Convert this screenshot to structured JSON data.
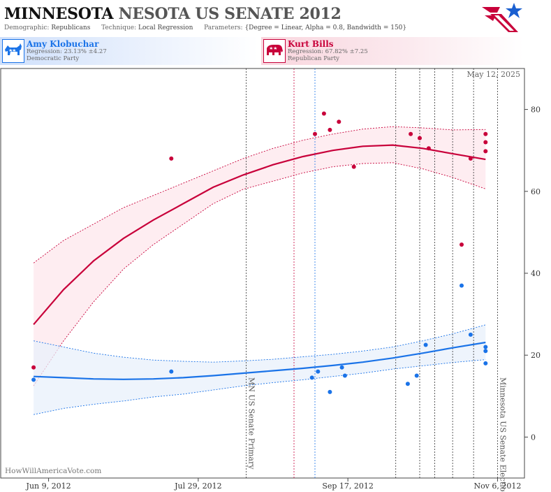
{
  "header": {
    "title_state": "MINNESOTA",
    "title_rest": "NESOTA US SENATE 2012",
    "demographic_label": "Demographic:",
    "demographic_value": "Republicans",
    "technique_label": "Technique:",
    "technique_value": "Local Regression",
    "parameters_label": "Parameters:",
    "parameters_value": "{Degree = Linear, Alpha = 0.8, Bandwidth = 150}"
  },
  "candidates": {
    "dem": {
      "name": "Amy Klobuchar",
      "regression": "Regression: 23.13% ±4.27",
      "party": "Democratic Party",
      "color": "#1a73e8",
      "icon": "donkey-icon"
    },
    "rep": {
      "name": "Kurt Bills",
      "regression": "Regression: 67.82% ±7.25",
      "party": "Republican Party",
      "color": "#c8003a",
      "icon": "elephant-icon"
    }
  },
  "watermark": "HowWillAmericaVote.com",
  "chart_data": {
    "type": "scatter",
    "date_stamp": "May 12, 2025",
    "x_tick_labels": [
      "Jun 9, 2012",
      "Jul 29, 2012",
      "Sep 17, 2012",
      "Nov 6, 2012"
    ],
    "x_ticks_days": [
      0,
      50,
      100,
      150
    ],
    "x_range": [
      "May 24, 2012",
      "Nov 16, 2012"
    ],
    "x_range_days": [
      -16,
      159
    ],
    "ylim": [
      -10,
      90
    ],
    "y_ticks": [
      0,
      20,
      40,
      60,
      80
    ],
    "grid": false,
    "event_lines": [
      {
        "day": 66,
        "label": "MN US Senate Primary"
      },
      {
        "day": 150,
        "label": "Minnesota US Senate Election"
      }
    ],
    "reference_lines": [
      {
        "day": 82,
        "color": "#c8003a"
      },
      {
        "day": 89,
        "color": "#1a73e8"
      },
      {
        "day": 116,
        "color": "#333333"
      },
      {
        "day": 124,
        "color": "#333333"
      },
      {
        "day": 129,
        "color": "#333333"
      },
      {
        "day": 135,
        "color": "#333333"
      },
      {
        "day": 142,
        "color": "#333333"
      }
    ],
    "series": [
      {
        "name": "Kurt Bills",
        "color": "#c8003a",
        "points": [
          [
            -5,
            17
          ],
          [
            41,
            68
          ],
          [
            89,
            74
          ],
          [
            92,
            79
          ],
          [
            94,
            75
          ],
          [
            97,
            77
          ],
          [
            102,
            66
          ],
          [
            121,
            74
          ],
          [
            124,
            73
          ],
          [
            127,
            70.5
          ],
          [
            138,
            47
          ],
          [
            141,
            68
          ],
          [
            146,
            74
          ],
          [
            146,
            72
          ],
          [
            146,
            69.8
          ]
        ],
        "fit": [
          [
            -5,
            27.5
          ],
          [
            5,
            36
          ],
          [
            15,
            43
          ],
          [
            25,
            48.5
          ],
          [
            35,
            53
          ],
          [
            45,
            57
          ],
          [
            55,
            61
          ],
          [
            65,
            64
          ],
          [
            75,
            66.5
          ],
          [
            85,
            68.5
          ],
          [
            95,
            70
          ],
          [
            105,
            71
          ],
          [
            115,
            71.3
          ],
          [
            125,
            70.5
          ],
          [
            135,
            69.2
          ],
          [
            146,
            67.8
          ]
        ],
        "band_upper": [
          [
            -5,
            42.5
          ],
          [
            5,
            48
          ],
          [
            15,
            52
          ],
          [
            25,
            56
          ],
          [
            35,
            59
          ],
          [
            45,
            62
          ],
          [
            55,
            65
          ],
          [
            65,
            68
          ],
          [
            75,
            70.5
          ],
          [
            85,
            72.5
          ],
          [
            95,
            74
          ],
          [
            105,
            75.2
          ],
          [
            115,
            75.8
          ],
          [
            125,
            75.5
          ],
          [
            135,
            75
          ],
          [
            146,
            75.1
          ]
        ],
        "band_lower": [
          [
            -5,
            12.5
          ],
          [
            5,
            23.5
          ],
          [
            15,
            33
          ],
          [
            25,
            41
          ],
          [
            35,
            47
          ],
          [
            45,
            52
          ],
          [
            55,
            57
          ],
          [
            65,
            60.5
          ],
          [
            75,
            62.5
          ],
          [
            85,
            64.5
          ],
          [
            95,
            66
          ],
          [
            105,
            66.8
          ],
          [
            115,
            67
          ],
          [
            125,
            65.5
          ],
          [
            135,
            63.4
          ],
          [
            146,
            60.6
          ]
        ]
      },
      {
        "name": "Amy Klobuchar",
        "color": "#1a73e8",
        "points": [
          [
            -5,
            14
          ],
          [
            41,
            16
          ],
          [
            88,
            14.5
          ],
          [
            90,
            16
          ],
          [
            94,
            11
          ],
          [
            98,
            17
          ],
          [
            99,
            15
          ],
          [
            120,
            13
          ],
          [
            123,
            15
          ],
          [
            126,
            22.5
          ],
          [
            138,
            37
          ],
          [
            141,
            25
          ],
          [
            146,
            22
          ],
          [
            146,
            21
          ],
          [
            146,
            18
          ]
        ],
        "fit": [
          [
            -5,
            14.8
          ],
          [
            5,
            14.5
          ],
          [
            15,
            14.2
          ],
          [
            25,
            14.1
          ],
          [
            35,
            14.2
          ],
          [
            45,
            14.5
          ],
          [
            55,
            15
          ],
          [
            65,
            15.6
          ],
          [
            75,
            16.2
          ],
          [
            85,
            16.8
          ],
          [
            95,
            17.5
          ],
          [
            105,
            18.3
          ],
          [
            115,
            19.3
          ],
          [
            125,
            20.5
          ],
          [
            135,
            21.8
          ],
          [
            146,
            23.1
          ]
        ],
        "band_upper": [
          [
            -5,
            23.5
          ],
          [
            5,
            22
          ],
          [
            15,
            20.5
          ],
          [
            25,
            19.5
          ],
          [
            35,
            18.8
          ],
          [
            45,
            18.5
          ],
          [
            55,
            18.3
          ],
          [
            65,
            18.6
          ],
          [
            75,
            19
          ],
          [
            85,
            19.6
          ],
          [
            95,
            20.2
          ],
          [
            105,
            21
          ],
          [
            115,
            22
          ],
          [
            125,
            23.5
          ],
          [
            135,
            25.2
          ],
          [
            146,
            27.4
          ]
        ],
        "band_lower": [
          [
            -5,
            5.5
          ],
          [
            5,
            7
          ],
          [
            15,
            8
          ],
          [
            25,
            8.8
          ],
          [
            35,
            9.8
          ],
          [
            45,
            10.5
          ],
          [
            55,
            11.5
          ],
          [
            65,
            12.5
          ],
          [
            75,
            13.3
          ],
          [
            85,
            14
          ],
          [
            95,
            14.8
          ],
          [
            105,
            15.6
          ],
          [
            115,
            16.6
          ],
          [
            125,
            17.4
          ],
          [
            135,
            18.2
          ],
          [
            146,
            18.9
          ]
        ]
      }
    ]
  }
}
